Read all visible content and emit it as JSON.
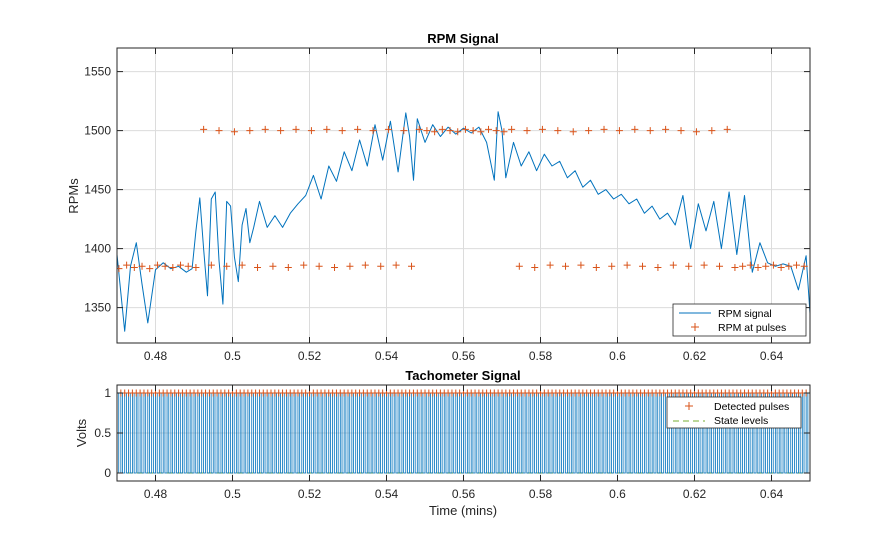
{
  "colors": {
    "signal": "#0072BD",
    "pulses": "#D95319",
    "grid": "#dcdcdc",
    "axis": "#262626"
  },
  "chart_data": [
    {
      "type": "line",
      "title": "RPM Signal",
      "xlabel": "",
      "ylabel": "RPMs",
      "xlim": [
        0.47,
        0.65
      ],
      "ylim": [
        1320,
        1570
      ],
      "grid": true,
      "x_ticks": [
        0.48,
        0.5,
        0.52,
        0.54,
        0.56,
        0.58,
        0.6,
        0.62,
        0.64
      ],
      "x_tick_labels": [
        "0.48",
        "0.5",
        "0.52",
        "0.54",
        "0.56",
        "0.58",
        "0.6",
        "0.62",
        "0.64"
      ],
      "y_ticks": [
        1350,
        1400,
        1450,
        1500,
        1550
      ],
      "y_tick_labels": [
        "1350",
        "1400",
        "1450",
        "1500",
        "1550"
      ],
      "legend_position": "bottom-right",
      "series": [
        {
          "name": "RPM signal",
          "style": "line",
          "x": [
            0.47,
            0.472,
            0.4735,
            0.475,
            0.4765,
            0.478,
            0.48,
            0.482,
            0.484,
            0.486,
            0.488,
            0.4895,
            0.4905,
            0.4915,
            0.4925,
            0.4935,
            0.4945,
            0.4955,
            0.4965,
            0.4975,
            0.4985,
            0.4995,
            0.5005,
            0.5015,
            0.5025,
            0.5035,
            0.5045,
            0.5055,
            0.507,
            0.509,
            0.511,
            0.513,
            0.515,
            0.517,
            0.519,
            0.521,
            0.523,
            0.525,
            0.527,
            0.529,
            0.531,
            0.533,
            0.535,
            0.537,
            0.539,
            0.541,
            0.543,
            0.545,
            0.546,
            0.547,
            0.548,
            0.55,
            0.552,
            0.554,
            0.556,
            0.558,
            0.56,
            0.562,
            0.564,
            0.566,
            0.568,
            0.569,
            0.57,
            0.571,
            0.573,
            0.575,
            0.577,
            0.579,
            0.581,
            0.583,
            0.585,
            0.587,
            0.589,
            0.591,
            0.593,
            0.595,
            0.597,
            0.599,
            0.601,
            0.603,
            0.605,
            0.607,
            0.609,
            0.611,
            0.613,
            0.615,
            0.617,
            0.619,
            0.621,
            0.623,
            0.625,
            0.627,
            0.629,
            0.631,
            0.633,
            0.635,
            0.637,
            0.639,
            0.641,
            0.643,
            0.645,
            0.647,
            0.649,
            0.65
          ],
          "y": [
            1395,
            1330,
            1385,
            1405,
            1370,
            1337,
            1382,
            1388,
            1383,
            1385,
            1380,
            1383,
            1415,
            1443,
            1400,
            1360,
            1442,
            1448,
            1390,
            1353,
            1440,
            1436,
            1393,
            1372,
            1420,
            1434,
            1405,
            1418,
            1440,
            1418,
            1428,
            1418,
            1430,
            1438,
            1445,
            1462,
            1442,
            1470,
            1457,
            1482,
            1466,
            1492,
            1470,
            1505,
            1475,
            1508,
            1465,
            1515,
            1495,
            1458,
            1510,
            1490,
            1505,
            1495,
            1503,
            1497,
            1502,
            1498,
            1503,
            1490,
            1458,
            1516,
            1500,
            1460,
            1490,
            1470,
            1482,
            1466,
            1480,
            1470,
            1474,
            1460,
            1466,
            1452,
            1458,
            1446,
            1450,
            1442,
            1446,
            1438,
            1442,
            1430,
            1436,
            1425,
            1430,
            1420,
            1445,
            1400,
            1438,
            1415,
            1440,
            1400,
            1448,
            1395,
            1445,
            1380,
            1405,
            1388,
            1385,
            1387,
            1385,
            1365,
            1394,
            1345
          ]
        },
        {
          "name": "RPM at pulses",
          "style": "markers-plus",
          "x": [
            0.4705,
            0.4725,
            0.4745,
            0.4765,
            0.4785,
            0.4805,
            0.4825,
            0.4845,
            0.4865,
            0.4885,
            0.4905,
            0.4925,
            0.4945,
            0.4965,
            0.4985,
            0.5005,
            0.5025,
            0.5045,
            0.5065,
            0.5085,
            0.5105,
            0.5125,
            0.5145,
            0.5165,
            0.5185,
            0.5205,
            0.5225,
            0.5245,
            0.5265,
            0.5285,
            0.5305,
            0.5325,
            0.5345,
            0.5365,
            0.5385,
            0.5405,
            0.5425,
            0.5445,
            0.5465,
            0.5485,
            0.5505,
            0.5525,
            0.5545,
            0.5565,
            0.5585,
            0.5605,
            0.5625,
            0.5645,
            0.5665,
            0.5685,
            0.5705,
            0.5725,
            0.5745,
            0.5765,
            0.5785,
            0.5805,
            0.5825,
            0.5845,
            0.5865,
            0.5885,
            0.5905,
            0.5925,
            0.5945,
            0.5965,
            0.5985,
            0.6005,
            0.6025,
            0.6045,
            0.6065,
            0.6085,
            0.6105,
            0.6125,
            0.6145,
            0.6165,
            0.6185,
            0.6205,
            0.6225,
            0.6245,
            0.6265,
            0.6285,
            0.6305,
            0.6325,
            0.6345,
            0.6365,
            0.6385,
            0.6405,
            0.6425,
            0.6445,
            0.6465,
            0.6485
          ],
          "y": [
            1383,
            1386,
            1384,
            1385,
            1383,
            1386,
            1385,
            1384,
            1386,
            1385,
            1384,
            1501,
            1386,
            1500,
            1385,
            1499,
            1386,
            1500,
            1384,
            1501,
            1385,
            1500,
            1384,
            1501,
            1386,
            1500,
            1385,
            1501,
            1384,
            1500,
            1385,
            1501,
            1386,
            1500,
            1385,
            1501,
            1386,
            1500,
            1385,
            1501,
            1500,
            1499,
            1501,
            1500,
            1499,
            1501,
            1500,
            1499,
            1501,
            1500,
            1499,
            1501,
            1385,
            1500,
            1384,
            1501,
            1386,
            1500,
            1385,
            1499,
            1386,
            1500,
            1384,
            1501,
            1385,
            1500,
            1386,
            1501,
            1385,
            1500,
            1384,
            1501,
            1386,
            1500,
            1385,
            1499,
            1386,
            1500,
            1385,
            1501,
            1384,
            1385,
            1386,
            1384,
            1385,
            1386,
            1384,
            1385,
            1386,
            1385
          ]
        }
      ]
    },
    {
      "type": "line",
      "title": "Tachometer Signal",
      "xlabel": "Time (mins)",
      "ylabel": "Volts",
      "xlim": [
        0.47,
        0.65
      ],
      "ylim": [
        -0.1,
        1.1
      ],
      "grid": true,
      "x_ticks": [
        0.48,
        0.5,
        0.52,
        0.54,
        0.56,
        0.58,
        0.6,
        0.62,
        0.64
      ],
      "x_tick_labels": [
        "0.48",
        "0.5",
        "0.52",
        "0.54",
        "0.56",
        "0.58",
        "0.6",
        "0.62",
        "0.64"
      ],
      "y_ticks": [
        0,
        0.5,
        1
      ],
      "y_tick_labels": [
        "0",
        "0.5",
        "1"
      ],
      "legend_position": "top-right",
      "pulse_period_mins": 0.001,
      "pulse_high_volts": 1,
      "pulse_low_volts": 0,
      "series": [
        {
          "name": "Detected pulses",
          "style": "markers-plus",
          "y_value": 1
        },
        {
          "name": "State levels",
          "style": "dashed-line",
          "levels": [
            0,
            1
          ]
        }
      ]
    }
  ]
}
